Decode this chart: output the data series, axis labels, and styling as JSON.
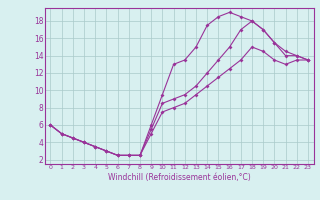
{
  "xlabel": "Windchill (Refroidissement éolien,°C)",
  "line_color": "#993399",
  "bg_color": "#d8f0f0",
  "grid_color": "#aacaca",
  "axis_color": "#993399",
  "xlim": [
    -0.5,
    23.5
  ],
  "ylim": [
    1.5,
    19.5
  ],
  "xticks": [
    0,
    1,
    2,
    3,
    4,
    5,
    6,
    7,
    8,
    9,
    10,
    11,
    12,
    13,
    14,
    15,
    16,
    17,
    18,
    19,
    20,
    21,
    22,
    23
  ],
  "yticks": [
    2,
    4,
    6,
    8,
    10,
    12,
    14,
    16,
    18
  ],
  "line1_x": [
    0,
    1,
    2,
    3,
    4,
    5,
    6,
    7,
    8,
    9,
    10,
    11,
    12,
    13,
    14,
    15,
    16,
    17,
    18,
    19,
    20,
    21,
    22,
    23
  ],
  "line1_y": [
    6.0,
    5.0,
    4.5,
    4.0,
    3.5,
    3.0,
    2.5,
    2.5,
    2.5,
    6.0,
    9.5,
    13.0,
    13.5,
    15.0,
    17.5,
    18.5,
    19.0,
    18.5,
    18.0,
    17.0,
    15.5,
    14.0,
    14.0,
    13.5
  ],
  "line2_x": [
    0,
    1,
    2,
    3,
    4,
    5,
    6,
    7,
    8,
    9,
    10,
    11,
    12,
    13,
    14,
    15,
    16,
    17,
    18,
    19,
    20,
    21,
    22,
    23
  ],
  "line2_y": [
    6.0,
    5.0,
    4.5,
    4.0,
    3.5,
    3.0,
    2.5,
    2.5,
    2.5,
    5.5,
    8.5,
    9.0,
    9.5,
    10.5,
    12.0,
    13.5,
    15.0,
    17.0,
    18.0,
    17.0,
    15.5,
    14.5,
    14.0,
    13.5
  ],
  "line3_x": [
    0,
    1,
    2,
    3,
    4,
    5,
    6,
    7,
    8,
    9,
    10,
    11,
    12,
    13,
    14,
    15,
    16,
    17,
    18,
    19,
    20,
    21,
    22,
    23
  ],
  "line3_y": [
    6.0,
    5.0,
    4.5,
    4.0,
    3.5,
    3.0,
    2.5,
    2.5,
    2.5,
    5.0,
    7.5,
    8.0,
    8.5,
    9.5,
    10.5,
    11.5,
    12.5,
    13.5,
    15.0,
    14.5,
    13.5,
    13.0,
    13.5,
    13.5
  ]
}
